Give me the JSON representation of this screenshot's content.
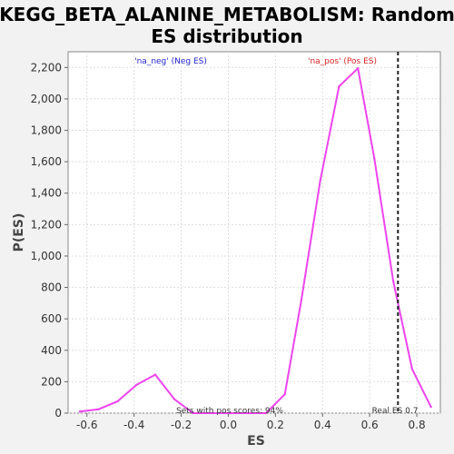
{
  "chart_data": {
    "type": "line",
    "title_lines": [
      "KEGG_BETA_ALANINE_METABOLISM: Random",
      "ES distribution"
    ],
    "xlabel": "ES",
    "ylabel": "P(ES)",
    "xlim": [
      -0.68,
      0.9
    ],
    "ylim": [
      0,
      2300
    ],
    "x_ticks": [
      -0.6,
      -0.4,
      -0.2,
      0.0,
      0.2,
      0.4,
      0.6,
      0.8
    ],
    "x_tick_labels": [
      "-0.6",
      "-0.4",
      "-0.2",
      "0.0",
      "0.2",
      "0.4",
      "0.6",
      "0.8"
    ],
    "y_ticks": [
      0,
      200,
      400,
      600,
      800,
      1000,
      1200,
      1400,
      1600,
      1800,
      2000,
      2200
    ],
    "y_tick_labels": [
      "0",
      "200",
      "400",
      "600",
      "800",
      "1,000",
      "1,200",
      "1,400",
      "1,600",
      "1,800",
      "2,000",
      "2,200"
    ],
    "grid": true,
    "series": [
      {
        "color": "#ee44ee",
        "x": [
          -0.63,
          -0.55,
          -0.47,
          -0.39,
          -0.31,
          -0.23,
          -0.15,
          -0.07,
          0.01,
          0.09,
          0.16,
          0.24,
          0.31,
          0.39,
          0.47,
          0.55,
          0.62,
          0.7,
          0.78,
          0.86
        ],
        "y": [
          10,
          25,
          75,
          180,
          245,
          90,
          0,
          0,
          0,
          0,
          0,
          120,
          720,
          1480,
          2080,
          2195,
          1620,
          840,
          280,
          40
        ]
      }
    ],
    "annotations": {
      "neg_label": "'na_neg' (Neg ES)",
      "pos_label": "'na_pos' (Pos ES)",
      "pos_scores_text": "Sets with pos scores: 94%",
      "real_es_text": "Real ES 0.7",
      "real_es_value": 0.72,
      "neg_color": "#2222cc",
      "pos_color": "#dd2222"
    }
  }
}
